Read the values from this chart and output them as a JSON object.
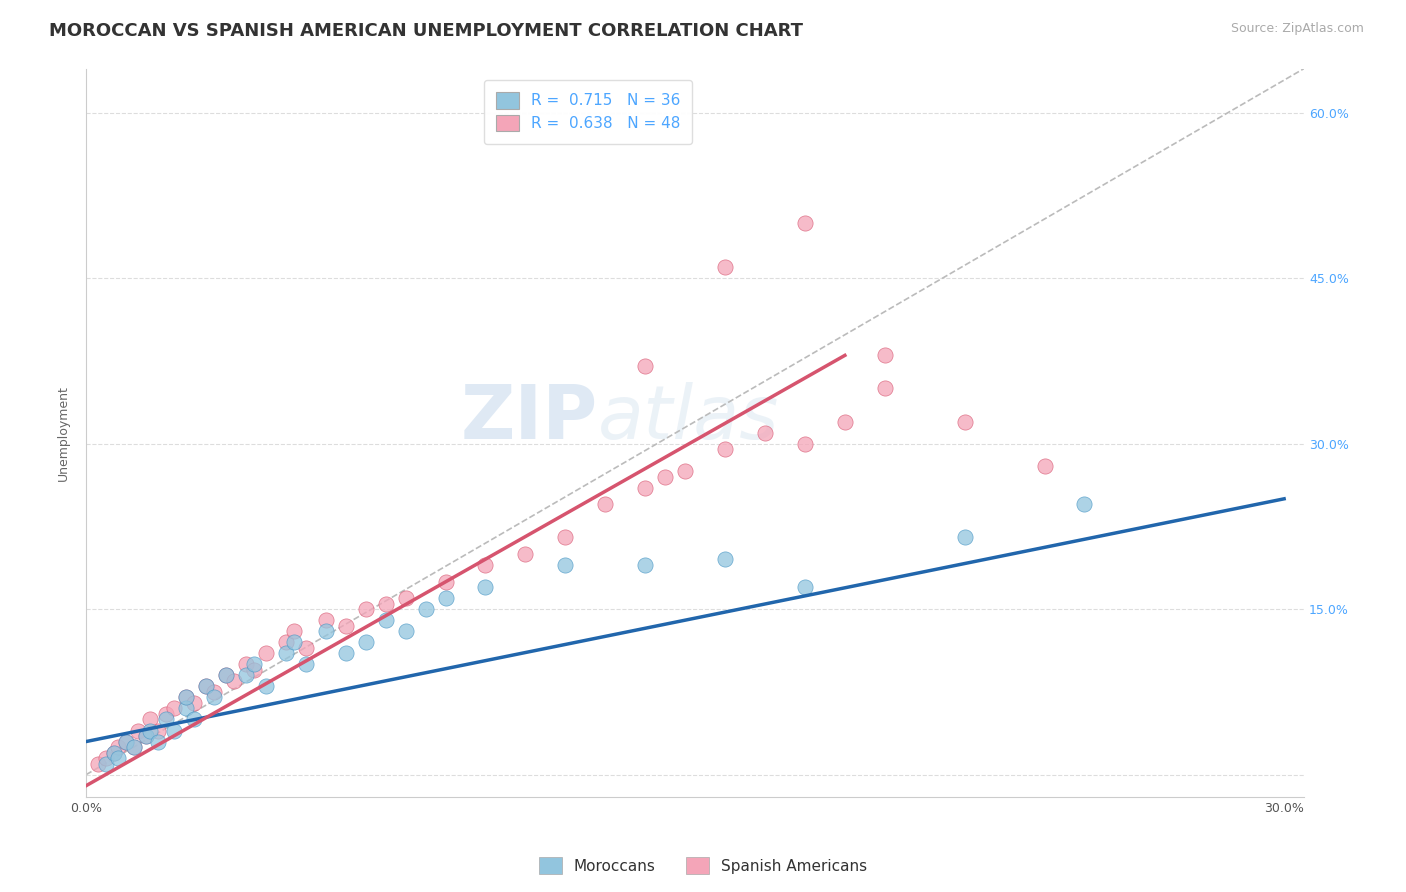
{
  "title": "MOROCCAN VS SPANISH AMERICAN UNEMPLOYMENT CORRELATION CHART",
  "source": "Source: ZipAtlas.com",
  "ylabel": "Unemployment",
  "xlabel": "",
  "watermark_zip": "ZIP",
  "watermark_atlas": "atlas",
  "xlim": [
    0.0,
    0.305
  ],
  "ylim": [
    -0.02,
    0.64
  ],
  "xticks": [
    0.0,
    0.05,
    0.1,
    0.15,
    0.2,
    0.25,
    0.3
  ],
  "xtick_labels": [
    "0.0%",
    "",
    "",
    "",
    "",
    "",
    "30.0%"
  ],
  "ytick_positions": [
    0.0,
    0.15,
    0.3,
    0.45,
    0.6
  ],
  "ytick_labels": [
    "",
    "",
    "",
    "",
    ""
  ],
  "right_ytick_positions": [
    0.0,
    0.15,
    0.3,
    0.45,
    0.6
  ],
  "right_ytick_labels": [
    "",
    "15.0%",
    "30.0%",
    "45.0%",
    "60.0%"
  ],
  "moroccan_color": "#92c5de",
  "moroccan_edge_color": "#4393c3",
  "spanish_color": "#f4a5b8",
  "spanish_edge_color": "#d6546e",
  "moroccan_line_color": "#2166ac",
  "spanish_line_color": "#d6546e",
  "trend_line_color": "#bbbbbb",
  "moroccan_R": 0.715,
  "spanish_R": 0.638,
  "moroccan_N": 36,
  "spanish_N": 48,
  "moroccan_scatter_x": [
    0.005,
    0.007,
    0.008,
    0.01,
    0.012,
    0.015,
    0.016,
    0.018,
    0.02,
    0.022,
    0.025,
    0.025,
    0.027,
    0.03,
    0.032,
    0.035,
    0.04,
    0.042,
    0.045,
    0.05,
    0.052,
    0.055,
    0.06,
    0.065,
    0.07,
    0.075,
    0.08,
    0.085,
    0.09,
    0.1,
    0.12,
    0.14,
    0.16,
    0.18,
    0.22,
    0.25
  ],
  "moroccan_scatter_y": [
    0.01,
    0.02,
    0.015,
    0.03,
    0.025,
    0.035,
    0.04,
    0.03,
    0.05,
    0.04,
    0.06,
    0.07,
    0.05,
    0.08,
    0.07,
    0.09,
    0.09,
    0.1,
    0.08,
    0.11,
    0.12,
    0.1,
    0.13,
    0.11,
    0.12,
    0.14,
    0.13,
    0.15,
    0.16,
    0.17,
    0.19,
    0.19,
    0.195,
    0.17,
    0.215,
    0.245
  ],
  "spanish_scatter_x": [
    0.003,
    0.005,
    0.007,
    0.008,
    0.01,
    0.012,
    0.013,
    0.015,
    0.016,
    0.018,
    0.02,
    0.022,
    0.025,
    0.027,
    0.03,
    0.032,
    0.035,
    0.037,
    0.04,
    0.042,
    0.045,
    0.05,
    0.052,
    0.055,
    0.06,
    0.065,
    0.07,
    0.075,
    0.08,
    0.09,
    0.1,
    0.11,
    0.12,
    0.13,
    0.14,
    0.145,
    0.15,
    0.16,
    0.17,
    0.18,
    0.19,
    0.2,
    0.14,
    0.16,
    0.18,
    0.2,
    0.22,
    0.24
  ],
  "spanish_scatter_y": [
    0.01,
    0.015,
    0.02,
    0.025,
    0.03,
    0.025,
    0.04,
    0.035,
    0.05,
    0.04,
    0.055,
    0.06,
    0.07,
    0.065,
    0.08,
    0.075,
    0.09,
    0.085,
    0.1,
    0.095,
    0.11,
    0.12,
    0.13,
    0.115,
    0.14,
    0.135,
    0.15,
    0.155,
    0.16,
    0.175,
    0.19,
    0.2,
    0.215,
    0.245,
    0.26,
    0.27,
    0.275,
    0.295,
    0.31,
    0.3,
    0.32,
    0.35,
    0.37,
    0.46,
    0.5,
    0.38,
    0.32,
    0.28
  ],
  "background_color": "#ffffff",
  "grid_color": "#dddddd",
  "title_fontsize": 13,
  "axis_label_fontsize": 9,
  "tick_fontsize": 9,
  "legend_fontsize": 11
}
